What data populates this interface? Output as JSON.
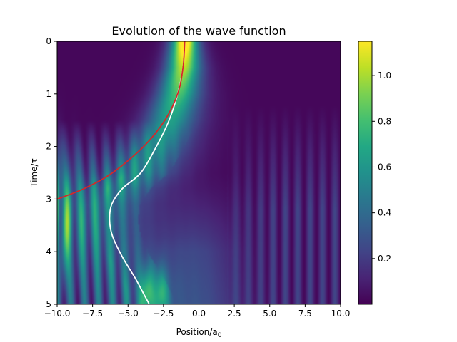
{
  "chart_data": {
    "type": "heatmap",
    "title": "Evolution of the wave function",
    "xlabel": "Position/a",
    "xlabel_sub": "0",
    "ylabel": "Time/τ",
    "xlim": [
      -10,
      10
    ],
    "ylim": [
      5,
      0
    ],
    "y_inverted": true,
    "x_ticks": [
      -10,
      -7.5,
      -5,
      -2.5,
      0,
      2.5,
      5,
      7.5,
      10
    ],
    "x_tick_labels": [
      "−10.0",
      "−7.5",
      "−5.0",
      "−2.5",
      "0.0",
      "2.5",
      "5.0",
      "7.5",
      "10.0"
    ],
    "y_ticks": [
      0,
      1,
      2,
      3,
      4,
      5
    ],
    "y_tick_labels": [
      "0",
      "1",
      "2",
      "3",
      "4",
      "5"
    ],
    "colormap": "viridis",
    "colorbar": {
      "range": [
        0.0,
        1.15
      ],
      "ticks": [
        0.2,
        0.4,
        0.6,
        0.8,
        1.0
      ],
      "tick_labels": [
        "0.2",
        "0.4",
        "0.6",
        "0.8",
        "1.0"
      ]
    },
    "overlay_lines": [
      {
        "color": "#ffffff",
        "points": [
          [
            -1.0,
            0.0
          ],
          [
            -1.12,
            0.5
          ],
          [
            -1.5,
            1.0
          ],
          [
            -2.1,
            1.5
          ],
          [
            -3.0,
            2.0
          ],
          [
            -4.1,
            2.5
          ],
          [
            -5.4,
            2.8
          ],
          [
            -6.15,
            3.1
          ],
          [
            -6.3,
            3.4
          ],
          [
            -6.1,
            3.7
          ],
          [
            -5.4,
            4.1
          ],
          [
            -4.5,
            4.5
          ],
          [
            -3.9,
            4.8
          ],
          [
            -3.5,
            5.0
          ]
        ]
      },
      {
        "color": "#d62728",
        "points": [
          [
            -1.0,
            0.0
          ],
          [
            -1.12,
            0.5
          ],
          [
            -1.5,
            1.0
          ],
          [
            -2.4,
            1.5
          ],
          [
            -3.9,
            2.0
          ],
          [
            -6.1,
            2.5
          ],
          [
            -8.1,
            2.8
          ],
          [
            -10.0,
            3.0
          ]
        ]
      }
    ],
    "intensity_features": [
      {
        "x": -1.1,
        "t": 0.3,
        "value": 1.05
      },
      {
        "x": -9.6,
        "t": 3.4,
        "value": 1.1
      },
      {
        "x": -3.2,
        "t": 4.8,
        "value": 0.95
      },
      {
        "x": -10.0,
        "t": 4.5,
        "value": 0.7
      },
      {
        "x": 6.0,
        "t": 0.5,
        "value": 0.02
      }
    ]
  }
}
